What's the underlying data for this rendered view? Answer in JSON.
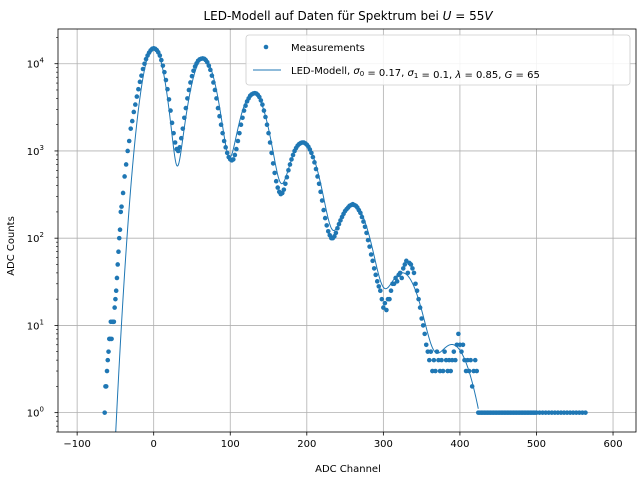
{
  "chart_data": {
    "type": "scatter",
    "title": "LED-Modell auf Daten für Spektrum bei U = 55V",
    "xlabel": "ADC Channel",
    "ylabel": "ADC Counts",
    "xlim": [
      -125,
      630
    ],
    "ylim": [
      0.6,
      25000
    ],
    "yscale": "log",
    "grid": true,
    "legend_position": "top-right",
    "x_ticks": [
      "−100",
      "0",
      "100",
      "200",
      "300",
      "400",
      "500",
      "600"
    ],
    "x_tick_values": [
      -100,
      0,
      100,
      200,
      300,
      400,
      500,
      600
    ],
    "y_tick_values": [
      1,
      10,
      100,
      1000,
      10000
    ],
    "y_ticks": [
      {
        "base": "10",
        "exp": "0"
      },
      {
        "base": "10",
        "exp": "1"
      },
      {
        "base": "10",
        "exp": "2"
      },
      {
        "base": "10",
        "exp": "3"
      },
      {
        "base": "10",
        "exp": "4"
      }
    ],
    "color": "#1f77b4",
    "series": [
      {
        "name": "Measurements",
        "kind": "scatter",
        "points": [
          [
            -64,
            1
          ],
          [
            -63,
            2
          ],
          [
            -62,
            2
          ],
          [
            -61,
            3
          ],
          [
            -60,
            4
          ],
          [
            -59,
            5
          ],
          [
            -58,
            7
          ],
          [
            -57,
            7
          ],
          [
            -56,
            11
          ],
          [
            -55,
            7
          ],
          [
            -54,
            11
          ],
          [
            -53,
            11
          ],
          [
            -52,
            11
          ],
          [
            -51,
            16
          ],
          [
            -50,
            20
          ],
          [
            -49,
            25
          ],
          [
            -48,
            35
          ],
          [
            -47,
            50
          ],
          [
            -46,
            70
          ],
          [
            -45,
            100
          ],
          [
            -44,
            125
          ],
          [
            -43,
            200
          ],
          [
            -42,
            230
          ],
          [
            -40,
            330
          ],
          [
            -38,
            510
          ],
          [
            -36,
            700
          ],
          [
            -34,
            1000
          ],
          [
            -32,
            1300
          ],
          [
            -30,
            1800
          ],
          [
            -28,
            2200
          ],
          [
            -26,
            2800
          ],
          [
            -24,
            3400
          ],
          [
            -22,
            4200
          ],
          [
            -20,
            5100
          ],
          [
            -18,
            6200
          ],
          [
            -16,
            7300
          ],
          [
            -14,
            8700
          ],
          [
            -12,
            10000
          ],
          [
            -10,
            11300
          ],
          [
            -8,
            12400
          ],
          [
            -6,
            13400
          ],
          [
            -4,
            14200
          ],
          [
            -2,
            14800
          ],
          [
            0,
            15000
          ],
          [
            2,
            14800
          ],
          [
            4,
            14300
          ],
          [
            6,
            13500
          ],
          [
            8,
            12400
          ],
          [
            10,
            11000
          ],
          [
            12,
            9500
          ],
          [
            14,
            8000
          ],
          [
            16,
            6500
          ],
          [
            18,
            5100
          ],
          [
            20,
            3900
          ],
          [
            22,
            2900
          ],
          [
            24,
            2100
          ],
          [
            26,
            1600
          ],
          [
            28,
            1250
          ],
          [
            30,
            1050
          ],
          [
            32,
            1000
          ],
          [
            34,
            1100
          ],
          [
            36,
            1400
          ],
          [
            38,
            1800
          ],
          [
            40,
            2400
          ],
          [
            42,
            3100
          ],
          [
            44,
            4000
          ],
          [
            46,
            5000
          ],
          [
            48,
            6100
          ],
          [
            50,
            7200
          ],
          [
            52,
            8300
          ],
          [
            54,
            9300
          ],
          [
            56,
            10100
          ],
          [
            58,
            10800
          ],
          [
            60,
            11200
          ],
          [
            62,
            11400
          ],
          [
            64,
            11500
          ],
          [
            66,
            11400
          ],
          [
            68,
            11000
          ],
          [
            70,
            10400
          ],
          [
            72,
            9500
          ],
          [
            74,
            8500
          ],
          [
            76,
            7300
          ],
          [
            78,
            6100
          ],
          [
            80,
            5000
          ],
          [
            82,
            4000
          ],
          [
            84,
            3100
          ],
          [
            86,
            2500
          ],
          [
            88,
            2000
          ],
          [
            90,
            1600
          ],
          [
            92,
            1300
          ],
          [
            94,
            1100
          ],
          [
            96,
            950
          ],
          [
            98,
            850
          ],
          [
            100,
            800
          ],
          [
            102,
            780
          ],
          [
            104,
            800
          ],
          [
            106,
            900
          ],
          [
            108,
            1050
          ],
          [
            110,
            1300
          ],
          [
            112,
            1600
          ],
          [
            114,
            2000
          ],
          [
            116,
            2400
          ],
          [
            118,
            2900
          ],
          [
            120,
            3300
          ],
          [
            122,
            3700
          ],
          [
            124,
            4000
          ],
          [
            126,
            4300
          ],
          [
            128,
            4450
          ],
          [
            130,
            4550
          ],
          [
            132,
            4600
          ],
          [
            134,
            4550
          ],
          [
            136,
            4400
          ],
          [
            138,
            4150
          ],
          [
            140,
            3800
          ],
          [
            142,
            3400
          ],
          [
            144,
            2900
          ],
          [
            146,
            2450
          ],
          [
            148,
            2000
          ],
          [
            150,
            1600
          ],
          [
            152,
            1250
          ],
          [
            154,
            950
          ],
          [
            156,
            720
          ],
          [
            158,
            560
          ],
          [
            160,
            450
          ],
          [
            162,
            380
          ],
          [
            164,
            340
          ],
          [
            166,
            320
          ],
          [
            168,
            330
          ],
          [
            170,
            360
          ],
          [
            172,
            420
          ],
          [
            174,
            500
          ],
          [
            176,
            600
          ],
          [
            178,
            700
          ],
          [
            180,
            800
          ],
          [
            182,
            900
          ],
          [
            184,
            1000
          ],
          [
            186,
            1080
          ],
          [
            188,
            1150
          ],
          [
            190,
            1200
          ],
          [
            192,
            1230
          ],
          [
            194,
            1250
          ],
          [
            196,
            1250
          ],
          [
            198,
            1220
          ],
          [
            200,
            1180
          ],
          [
            202,
            1120
          ],
          [
            204,
            1040
          ],
          [
            206,
            950
          ],
          [
            208,
            850
          ],
          [
            210,
            740
          ],
          [
            212,
            620
          ],
          [
            214,
            510
          ],
          [
            216,
            420
          ],
          [
            218,
            340
          ],
          [
            220,
            270
          ],
          [
            222,
            210
          ],
          [
            224,
            170
          ],
          [
            226,
            140
          ],
          [
            228,
            120
          ],
          [
            230,
            108
          ],
          [
            232,
            100
          ],
          [
            234,
            100
          ],
          [
            236,
            105
          ],
          [
            238,
            115
          ],
          [
            240,
            130
          ],
          [
            242,
            145
          ],
          [
            244,
            160
          ],
          [
            246,
            175
          ],
          [
            248,
            190
          ],
          [
            250,
            205
          ],
          [
            252,
            215
          ],
          [
            254,
            225
          ],
          [
            256,
            235
          ],
          [
            258,
            240
          ],
          [
            260,
            245
          ],
          [
            262,
            240
          ],
          [
            264,
            235
          ],
          [
            266,
            225
          ],
          [
            268,
            210
          ],
          [
            270,
            195
          ],
          [
            272,
            175
          ],
          [
            274,
            155
          ],
          [
            276,
            135
          ],
          [
            278,
            115
          ],
          [
            280,
            95
          ],
          [
            282,
            80
          ],
          [
            284,
            65
          ],
          [
            286,
            55
          ],
          [
            288,
            45
          ],
          [
            290,
            38
          ],
          [
            292,
            32
          ],
          [
            294,
            28
          ],
          [
            296,
            25
          ],
          [
            298,
            20
          ],
          [
            300,
            16
          ],
          [
            302,
            18
          ],
          [
            304,
            15
          ],
          [
            306,
            20
          ],
          [
            308,
            20
          ],
          [
            310,
            25
          ],
          [
            312,
            30
          ],
          [
            314,
            30
          ],
          [
            316,
            35
          ],
          [
            318,
            32
          ],
          [
            320,
            38
          ],
          [
            322,
            40
          ],
          [
            324,
            35
          ],
          [
            326,
            45
          ],
          [
            328,
            50
          ],
          [
            330,
            55
          ],
          [
            332,
            40
          ],
          [
            334,
            52
          ],
          [
            336,
            50
          ],
          [
            338,
            45
          ],
          [
            340,
            40
          ],
          [
            342,
            30
          ],
          [
            344,
            25
          ],
          [
            346,
            20
          ],
          [
            348,
            16
          ],
          [
            350,
            12
          ],
          [
            352,
            10
          ],
          [
            354,
            8
          ],
          [
            356,
            6
          ],
          [
            358,
            5
          ],
          [
            360,
            4
          ],
          [
            362,
            5
          ],
          [
            364,
            3
          ],
          [
            366,
            4
          ],
          [
            368,
            3
          ],
          [
            370,
            5
          ],
          [
            372,
            4
          ],
          [
            374,
            3
          ],
          [
            376,
            4
          ],
          [
            378,
            3
          ],
          [
            380,
            5
          ],
          [
            382,
            4
          ],
          [
            384,
            3
          ],
          [
            386,
            4
          ],
          [
            388,
            3
          ],
          [
            390,
            4
          ],
          [
            392,
            5
          ],
          [
            394,
            4
          ],
          [
            396,
            6
          ],
          [
            398,
            8
          ],
          [
            400,
            6
          ],
          [
            402,
            5
          ],
          [
            404,
            6
          ],
          [
            406,
            4
          ],
          [
            408,
            3
          ],
          [
            410,
            4
          ],
          [
            412,
            3
          ],
          [
            414,
            4
          ],
          [
            416,
            2
          ],
          [
            418,
            3
          ],
          [
            420,
            4
          ],
          [
            422,
            3
          ],
          [
            424,
            1
          ],
          [
            426,
            1
          ],
          [
            428,
            1
          ],
          [
            430,
            1
          ],
          [
            432,
            1
          ],
          [
            434,
            1
          ],
          [
            436,
            1
          ],
          [
            438,
            1
          ],
          [
            440,
            1
          ],
          [
            442,
            1
          ],
          [
            444,
            1
          ],
          [
            446,
            1
          ],
          [
            448,
            1
          ],
          [
            450,
            1
          ],
          [
            452,
            1
          ],
          [
            454,
            1
          ],
          [
            456,
            1
          ],
          [
            458,
            1
          ],
          [
            460,
            1
          ],
          [
            462,
            1
          ],
          [
            464,
            1
          ],
          [
            466,
            1
          ],
          [
            468,
            1
          ],
          [
            470,
            1
          ],
          [
            472,
            1
          ],
          [
            474,
            1
          ],
          [
            476,
            1
          ],
          [
            478,
            1
          ],
          [
            480,
            1
          ],
          [
            482,
            1
          ],
          [
            484,
            1
          ],
          [
            486,
            1
          ],
          [
            488,
            1
          ],
          [
            490,
            1
          ],
          [
            492,
            1
          ],
          [
            494,
            1
          ],
          [
            496,
            1
          ],
          [
            498,
            1
          ],
          [
            500,
            1
          ],
          [
            504,
            1
          ],
          [
            508,
            1
          ],
          [
            512,
            1
          ],
          [
            516,
            1
          ],
          [
            520,
            1
          ],
          [
            524,
            1
          ],
          [
            528,
            1
          ],
          [
            532,
            1
          ],
          [
            536,
            1
          ],
          [
            540,
            1
          ],
          [
            544,
            1
          ],
          [
            548,
            1
          ],
          [
            552,
            1
          ],
          [
            556,
            1
          ],
          [
            560,
            1
          ],
          [
            564,
            1
          ]
        ]
      },
      {
        "name": "LED-Modell, σ0 = 0.17, σ1 = 0.1, λ = 0.85, G = 65",
        "kind": "line",
        "peaks": [
          {
            "mu": 0,
            "amp": 15500,
            "sigma": 11
          },
          {
            "mu": 65,
            "amp": 11600,
            "sigma": 13
          },
          {
            "mu": 130,
            "amp": 4600,
            "sigma": 14.5
          },
          {
            "mu": 195,
            "amp": 1250,
            "sigma": 15.5
          },
          {
            "mu": 260,
            "amp": 245,
            "sigma": 16.5
          },
          {
            "mu": 325,
            "amp": 40,
            "sigma": 17.5
          },
          {
            "mu": 390,
            "amp": 6,
            "sigma": 18.5
          }
        ],
        "x_range": [
          -51,
          424
        ]
      }
    ]
  }
}
